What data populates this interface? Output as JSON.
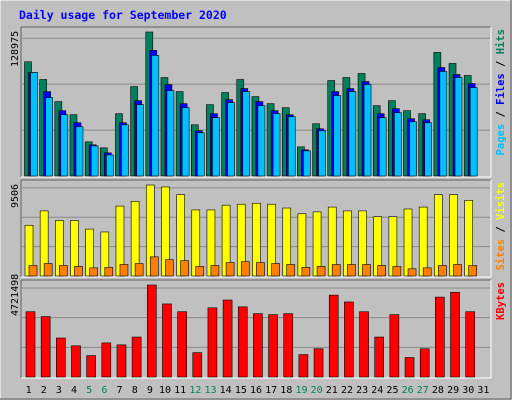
{
  "chart_data": {
    "type": "bar",
    "title": "Daily usage for September 2020",
    "colors": {
      "background": "#c0c0c0",
      "hits": "#00805c",
      "files": "#0000ff",
      "pages": "#00c0ff",
      "visits": "#ffff00",
      "sites": "#ff8000",
      "kbytes": "#ff0000",
      "title": "#0000ff",
      "weekend": "#00805c",
      "weekday": "#000000"
    },
    "days": [
      {
        "label": "1",
        "weekend": false
      },
      {
        "label": "2",
        "weekend": false
      },
      {
        "label": "3",
        "weekend": false
      },
      {
        "label": "4",
        "weekend": false
      },
      {
        "label": "5",
        "weekend": true
      },
      {
        "label": "6",
        "weekend": true
      },
      {
        "label": "7",
        "weekend": false
      },
      {
        "label": "8",
        "weekend": false
      },
      {
        "label": "9",
        "weekend": false
      },
      {
        "label": "10",
        "weekend": false
      },
      {
        "label": "11",
        "weekend": false
      },
      {
        "label": "12",
        "weekend": true
      },
      {
        "label": "13",
        "weekend": true
      },
      {
        "label": "14",
        "weekend": false
      },
      {
        "label": "15",
        "weekend": false
      },
      {
        "label": "16",
        "weekend": false
      },
      {
        "label": "17",
        "weekend": false
      },
      {
        "label": "18",
        "weekend": false
      },
      {
        "label": "19",
        "weekend": true
      },
      {
        "label": "20",
        "weekend": true
      },
      {
        "label": "21",
        "weekend": false
      },
      {
        "label": "22",
        "weekend": false
      },
      {
        "label": "23",
        "weekend": false
      },
      {
        "label": "24",
        "weekend": false
      },
      {
        "label": "25",
        "weekend": false
      },
      {
        "label": "26",
        "weekend": true
      },
      {
        "label": "27",
        "weekend": true
      },
      {
        "label": "28",
        "weekend": false
      },
      {
        "label": "29",
        "weekend": false
      },
      {
        "label": "30",
        "weekend": false
      },
      {
        "label": "31",
        "weekend": false
      }
    ],
    "panels": [
      {
        "id": "hits-files-pages",
        "max_label": "128975",
        "max": 128975,
        "legend": [
          {
            "text": "Pages",
            "color": "#00c0ff"
          },
          {
            "text": " / ",
            "color": "#000000"
          },
          {
            "text": "Files",
            "color": "#0000ff"
          },
          {
            "text": " / ",
            "color": "#000000"
          },
          {
            "text": "Hits",
            "color": "#00805c"
          }
        ],
        "series": [
          {
            "name": "Hits",
            "color": "#00805c",
            "values": [
              102300,
              86400,
              66600,
              54900,
              30600,
              25200,
              55800,
              80100,
              128975,
              88200,
              75600,
              45900,
              63900,
              74700,
              86400,
              71100,
              64800,
              61200,
              26100,
              46800,
              85500,
              88200,
              91800,
              63000,
              67500,
              58500,
              55800,
              110700,
              100800,
              90000,
              0
            ],
            "secondary": [
              90000,
              70200,
              54900,
              44100,
              27000,
              18900,
              45900,
              63900,
              108000,
              76500,
              61200,
              38700,
              52200,
              65700,
              75600,
              63000,
              55800,
              53100,
              22500,
              40500,
              72000,
              75600,
              81900,
              52200,
              56700,
              48600,
              47700,
              93600,
              88200,
              79200,
              0
            ]
          },
          {
            "name": "Files",
            "color": "#0000ff",
            "values": [
              92700,
              75600,
              58500,
              47700,
              27900,
              20700,
              47700,
              67500,
              112500,
              81900,
              64800,
              40500,
              55800,
              68400,
              78300,
              66600,
              58500,
              54900,
              23400,
              42300,
              75600,
              78300,
              84600,
              55800,
              60300,
              51300,
              50400,
              97200,
              90900,
              82800,
              0
            ]
          },
          {
            "name": "Pages",
            "color": "#00c0ff",
            "values": [
              92700,
              70200,
              54900,
              44100,
              27000,
              18900,
              45900,
              63900,
              108000,
              76500,
              61200,
              38700,
              52200,
              65700,
              75600,
              63000,
              55800,
              53100,
              22500,
              40500,
              72000,
              75600,
              81900,
              52200,
              56700,
              48600,
              47700,
              93600,
              88200,
              79200,
              0
            ]
          }
        ]
      },
      {
        "id": "visits-sites",
        "max_label": "9506",
        "max": 9506,
        "legend": [
          {
            "text": "Sites",
            "color": "#ff8000"
          },
          {
            "text": " / ",
            "color": "#000000"
          },
          {
            "text": "Visits",
            "color": "#ffff00"
          }
        ],
        "series": [
          {
            "name": "Visits",
            "color": "#ffff00",
            "values": [
              5300,
              6800,
              5800,
              5800,
              4900,
              4600,
              7300,
              7800,
              9506,
              9300,
              8500,
              6900,
              6900,
              7400,
              7500,
              7600,
              7500,
              7100,
              6500,
              6700,
              7200,
              6800,
              6800,
              6200,
              6200,
              7000,
              7200,
              8500,
              8500,
              7900,
              0
            ]
          },
          {
            "name": "Sites",
            "color": "#ff8000",
            "values": [
              1100,
              1300,
              1100,
              1000,
              850,
              900,
              1200,
              1300,
              2000,
              1700,
              1600,
              1000,
              1100,
              1400,
              1500,
              1400,
              1300,
              1200,
              900,
              1000,
              1200,
              1200,
              1200,
              1100,
              1000,
              750,
              850,
              1100,
              1200,
              1100,
              0
            ]
          }
        ]
      },
      {
        "id": "kbytes",
        "max_label": "4721498",
        "max": 4721498,
        "legend": [
          {
            "text": "KBytes",
            "color": "#ff0000"
          }
        ],
        "series": [
          {
            "name": "KBytes",
            "color": "#ff0000",
            "values": [
              3350000,
              3100000,
              2000000,
              1600000,
              1100000,
              1750000,
              1650000,
              2050000,
              4721498,
              3750000,
              3350000,
              1250000,
              3550000,
              3950000,
              3600000,
              3250000,
              3200000,
              3250000,
              1150000,
              1450000,
              4200000,
              3850000,
              3350000,
              2050000,
              3200000,
              1000000,
              1450000,
              4100000,
              4350000,
              3350000,
              0
            ]
          }
        ]
      }
    ]
  }
}
